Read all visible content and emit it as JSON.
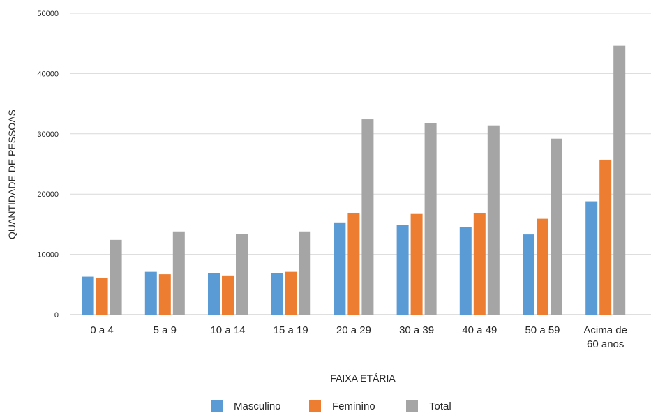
{
  "chart_data": {
    "type": "bar",
    "title": "",
    "xlabel": "FAIXA ETÁRIA",
    "ylabel": "QUANTIDADE DE PESSOAS",
    "ylim": [
      0,
      50000
    ],
    "yticks": [
      "0",
      "10000",
      "20000",
      "30000",
      "40000",
      "50000"
    ],
    "ytick_values": [
      0,
      10000,
      20000,
      30000,
      40000,
      50000
    ],
    "grid": true,
    "legend": "bottom",
    "categories": [
      [
        "0 a 4"
      ],
      [
        "5 a 9"
      ],
      [
        "10 a 14"
      ],
      [
        "15 a 19"
      ],
      [
        "20 a 29"
      ],
      [
        "30 a 39"
      ],
      [
        "40 a 49"
      ],
      [
        "50 a 59"
      ],
      [
        "Acima de",
        "60 anos"
      ]
    ],
    "series": [
      {
        "name": "Masculino",
        "color": "#5b9bd5",
        "values": [
          6300,
          7100,
          6900,
          6900,
          15300,
          14900,
          14500,
          13300,
          18800
        ]
      },
      {
        "name": "Feminino",
        "color": "#ed7d31",
        "values": [
          6100,
          6700,
          6500,
          7100,
          16900,
          16700,
          16900,
          15900,
          25700
        ]
      },
      {
        "name": "Total",
        "color": "#a5a5a5",
        "values": [
          12400,
          13800,
          13400,
          13800,
          32400,
          31800,
          31400,
          29200,
          44600
        ]
      }
    ]
  }
}
